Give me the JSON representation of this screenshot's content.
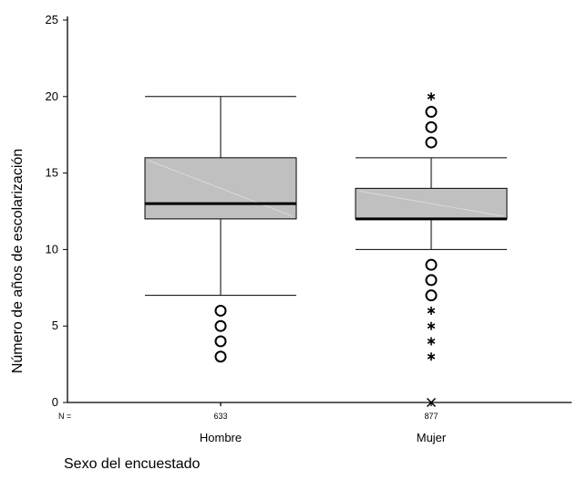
{
  "chart_data": {
    "type": "boxplot",
    "title": "",
    "xlabel": "Sexo del encuestado",
    "ylabel": "Número de años de escolarización",
    "ylim": [
      0,
      25
    ],
    "y_ticks": [
      0,
      5,
      10,
      15,
      20,
      25
    ],
    "n_prefix": "N =",
    "grid": false,
    "legend": "none",
    "colors": {
      "box_fill": "#c0c0c0",
      "median": "#000000",
      "outline": "#000000"
    },
    "categories": [
      {
        "name": "Hombre",
        "n": "633",
        "q1": 12,
        "median": 13,
        "q3": 16,
        "whisker_low": 7,
        "whisker_high": 20,
        "outliers": [
          3,
          4,
          5,
          6
        ],
        "extremes": []
      },
      {
        "name": "Mujer",
        "n": "877",
        "q1": 12,
        "median": 12,
        "q3": 14,
        "whisker_low": 10,
        "whisker_high": 16,
        "outliers": [
          9,
          8,
          7,
          17,
          18,
          19
        ],
        "extremes": [
          6,
          5,
          4,
          3,
          20,
          0
        ]
      }
    ]
  }
}
